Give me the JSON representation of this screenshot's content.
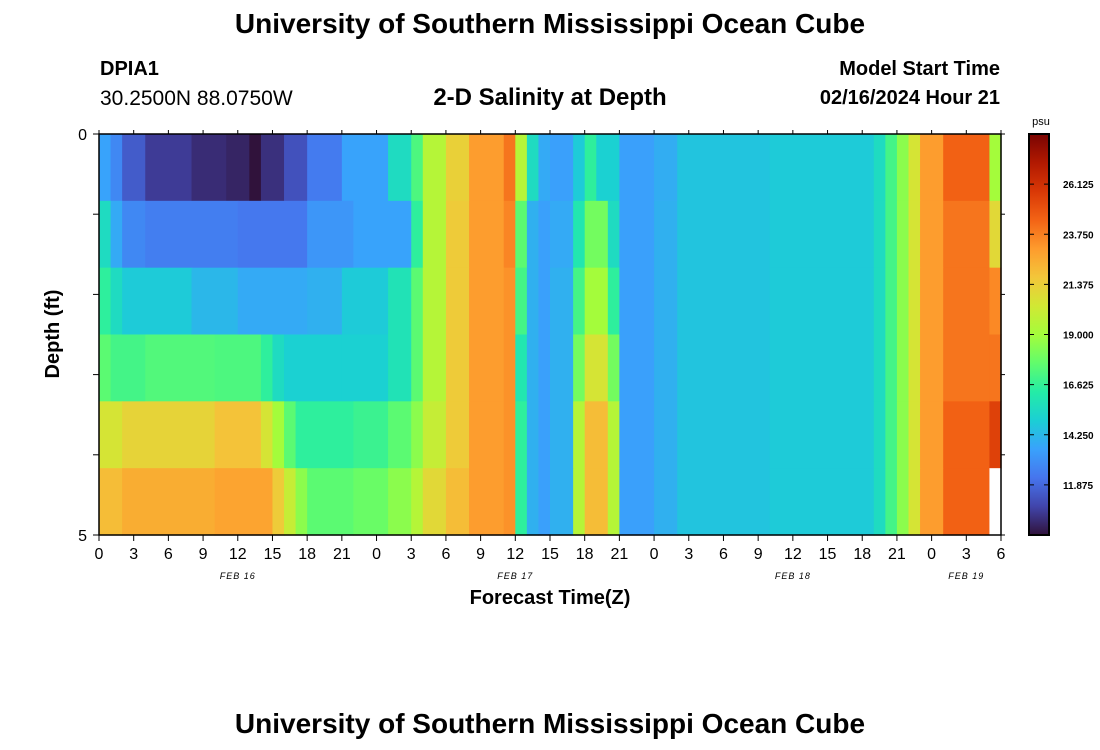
{
  "page": {
    "title_top": "University of Southern Mississippi Ocean Cube",
    "title_bottom": "University of Southern Mississippi Ocean Cube",
    "station": "DPIA1",
    "coords": "30.2500N  88.0750W",
    "chart_title": "2-D Salinity at Depth",
    "model_start_label": "Model Start Time",
    "model_start_value": "02/16/2024 Hour 21"
  },
  "chart_data": {
    "type": "heatmap",
    "title": "2-D Salinity at Depth",
    "xlabel": "Forecast Time(Z)",
    "ylabel": "Depth (ft)",
    "colorbar_unit": "psu",
    "colorbar_ticks": [
      "26.125",
      "23.750",
      "21.375",
      "19.000",
      "16.625",
      "14.250",
      "11.875"
    ],
    "colorbar_range": [
      9.5,
      28.5
    ],
    "colorbar_colors": [
      "#30123b",
      "#4145ab",
      "#4675ed",
      "#39a2fc",
      "#1bcfd4",
      "#24eca6",
      "#61fc6c",
      "#a4fc3b",
      "#d1e834",
      "#f3c63a",
      "#fe9b2d",
      "#f36315",
      "#d93806",
      "#b11901",
      "#7a0402"
    ],
    "y_ticks": [
      "0",
      "5"
    ],
    "y_range": [
      0,
      5
    ],
    "x_tick_labels": [
      "0",
      "3",
      "6",
      "9",
      "12",
      "15",
      "18",
      "21",
      "0",
      "3",
      "6",
      "9",
      "12",
      "15",
      "18",
      "21",
      "0",
      "3",
      "6",
      "9",
      "12",
      "15",
      "18",
      "21",
      "0",
      "3",
      "6"
    ],
    "date_labels": [
      "FEB 16",
      "FEB 17",
      "FEB 18",
      "FEB 19"
    ],
    "x_start_hour": 0,
    "x_end_hour": 78,
    "depth_rows": [
      {
        "segments": [
          [
            0,
            1,
            13.6
          ],
          [
            1,
            2,
            12.8
          ],
          [
            2,
            4,
            11.5
          ],
          [
            4,
            8,
            10.6
          ],
          [
            8,
            11,
            10.2
          ],
          [
            11,
            13,
            10.0
          ],
          [
            13,
            14,
            9.5
          ],
          [
            14,
            16,
            10.3
          ],
          [
            16,
            18,
            11.2
          ],
          [
            18,
            21,
            12.4
          ],
          [
            21,
            25,
            13.6
          ],
          [
            25,
            27,
            15.5
          ],
          [
            27,
            28,
            17.2
          ],
          [
            28,
            30,
            19.5
          ],
          [
            30,
            32,
            21.3
          ],
          [
            32,
            35,
            23.0
          ],
          [
            35,
            36,
            24.0
          ],
          [
            36,
            37,
            19.5
          ],
          [
            37,
            38,
            15.5
          ],
          [
            38,
            39,
            13.8
          ],
          [
            39,
            41,
            13.5
          ],
          [
            41,
            42,
            14.8
          ],
          [
            42,
            43,
            16.5
          ],
          [
            43,
            45,
            15.0
          ],
          [
            45,
            48,
            13.5
          ],
          [
            48,
            50,
            13.9
          ],
          [
            50,
            58,
            14.6
          ],
          [
            58,
            67,
            14.8
          ],
          [
            67,
            68,
            15.5
          ],
          [
            68,
            69,
            17.0
          ],
          [
            69,
            70,
            18.5
          ],
          [
            70,
            71,
            20.5
          ],
          [
            71,
            73,
            23.0
          ],
          [
            73,
            77,
            24.5
          ],
          [
            77,
            78,
            19.0
          ]
        ]
      },
      {
        "segments": [
          [
            0,
            1,
            15.5
          ],
          [
            1,
            2,
            13.8
          ],
          [
            2,
            4,
            12.8
          ],
          [
            4,
            12,
            12.5
          ],
          [
            12,
            18,
            12.3
          ],
          [
            18,
            22,
            13.2
          ],
          [
            22,
            27,
            13.6
          ],
          [
            27,
            28,
            16.5
          ],
          [
            28,
            30,
            19.5
          ],
          [
            30,
            32,
            21.5
          ],
          [
            32,
            35,
            23.0
          ],
          [
            35,
            36,
            23.6
          ],
          [
            36,
            37,
            17.5
          ],
          [
            37,
            38,
            14.0
          ],
          [
            38,
            39,
            13.5
          ],
          [
            39,
            41,
            13.8
          ],
          [
            41,
            42,
            16.0
          ],
          [
            42,
            44,
            18.0
          ],
          [
            44,
            45,
            15.5
          ],
          [
            45,
            48,
            13.5
          ],
          [
            48,
            50,
            14.0
          ],
          [
            50,
            58,
            14.6
          ],
          [
            58,
            67,
            14.8
          ],
          [
            67,
            68,
            15.5
          ],
          [
            68,
            69,
            17.0
          ],
          [
            69,
            70,
            18.5
          ],
          [
            70,
            71,
            20.5
          ],
          [
            71,
            73,
            23.0
          ],
          [
            73,
            77,
            24.0
          ],
          [
            77,
            78,
            21.0
          ]
        ]
      },
      {
        "segments": [
          [
            0,
            1,
            16.5
          ],
          [
            1,
            2,
            15.5
          ],
          [
            2,
            8,
            14.8
          ],
          [
            8,
            12,
            14.2
          ],
          [
            12,
            18,
            13.8
          ],
          [
            18,
            21,
            14.0
          ],
          [
            21,
            25,
            14.8
          ],
          [
            25,
            27,
            15.8
          ],
          [
            27,
            28,
            17.5
          ],
          [
            28,
            30,
            19.5
          ],
          [
            30,
            32,
            21.5
          ],
          [
            32,
            35,
            23.0
          ],
          [
            35,
            36,
            23.3
          ],
          [
            36,
            37,
            17.0
          ],
          [
            37,
            38,
            14.0
          ],
          [
            38,
            39,
            13.5
          ],
          [
            39,
            41,
            14.0
          ],
          [
            41,
            42,
            17.0
          ],
          [
            42,
            44,
            19.0
          ],
          [
            44,
            45,
            16.5
          ],
          [
            45,
            48,
            13.5
          ],
          [
            48,
            50,
            14.0
          ],
          [
            50,
            58,
            14.6
          ],
          [
            58,
            67,
            14.8
          ],
          [
            67,
            68,
            15.5
          ],
          [
            68,
            69,
            17.0
          ],
          [
            69,
            70,
            18.5
          ],
          [
            70,
            71,
            20.5
          ],
          [
            71,
            73,
            23.0
          ],
          [
            73,
            77,
            24.0
          ],
          [
            77,
            78,
            23.5
          ]
        ]
      },
      {
        "segments": [
          [
            0,
            1,
            17.5
          ],
          [
            1,
            4,
            17.0
          ],
          [
            4,
            10,
            17.3
          ],
          [
            10,
            14,
            17.2
          ],
          [
            14,
            15,
            16.5
          ],
          [
            15,
            16,
            15.5
          ],
          [
            16,
            21,
            15.0
          ],
          [
            21,
            25,
            15.0
          ],
          [
            25,
            27,
            15.8
          ],
          [
            27,
            28,
            17.5
          ],
          [
            28,
            30,
            19.5
          ],
          [
            30,
            32,
            21.5
          ],
          [
            32,
            35,
            23.0
          ],
          [
            35,
            36,
            23.3
          ],
          [
            36,
            37,
            16.0
          ],
          [
            37,
            38,
            14.0
          ],
          [
            38,
            39,
            13.5
          ],
          [
            39,
            41,
            14.0
          ],
          [
            41,
            42,
            18.0
          ],
          [
            42,
            44,
            20.5
          ],
          [
            44,
            45,
            18.0
          ],
          [
            45,
            48,
            13.5
          ],
          [
            48,
            50,
            14.0
          ],
          [
            50,
            58,
            14.6
          ],
          [
            58,
            67,
            14.8
          ],
          [
            67,
            68,
            15.5
          ],
          [
            68,
            69,
            17.0
          ],
          [
            69,
            70,
            18.5
          ],
          [
            70,
            71,
            20.5
          ],
          [
            71,
            73,
            23.0
          ],
          [
            73,
            77,
            24.0
          ],
          [
            77,
            78,
            24.0
          ]
        ]
      },
      {
        "segments": [
          [
            0,
            2,
            20.5
          ],
          [
            2,
            10,
            21.2
          ],
          [
            10,
            14,
            21.8
          ],
          [
            14,
            15,
            20.5
          ],
          [
            15,
            16,
            19.0
          ],
          [
            16,
            17,
            17.5
          ],
          [
            17,
            22,
            16.5
          ],
          [
            22,
            25,
            16.8
          ],
          [
            25,
            27,
            17.5
          ],
          [
            27,
            28,
            18.5
          ],
          [
            28,
            30,
            20.0
          ],
          [
            30,
            32,
            21.5
          ],
          [
            32,
            35,
            23.0
          ],
          [
            35,
            36,
            23.3
          ],
          [
            36,
            37,
            16.5
          ],
          [
            37,
            38,
            14.0
          ],
          [
            38,
            39,
            13.5
          ],
          [
            39,
            41,
            14.0
          ],
          [
            41,
            42,
            19.5
          ],
          [
            42,
            44,
            22.0
          ],
          [
            44,
            45,
            19.5
          ],
          [
            45,
            48,
            13.5
          ],
          [
            48,
            50,
            14.0
          ],
          [
            50,
            58,
            14.6
          ],
          [
            58,
            67,
            14.8
          ],
          [
            67,
            68,
            15.5
          ],
          [
            68,
            69,
            17.0
          ],
          [
            69,
            70,
            18.5
          ],
          [
            70,
            71,
            20.5
          ],
          [
            71,
            73,
            23.0
          ],
          [
            73,
            77,
            24.5
          ],
          [
            77,
            78,
            25.5
          ]
        ]
      },
      {
        "segments": [
          [
            0,
            2,
            22.0
          ],
          [
            2,
            10,
            22.5
          ],
          [
            10,
            15,
            22.8
          ],
          [
            15,
            16,
            21.5
          ],
          [
            16,
            17,
            20.0
          ],
          [
            17,
            18,
            18.5
          ],
          [
            18,
            22,
            17.5
          ],
          [
            22,
            25,
            17.8
          ],
          [
            25,
            27,
            18.5
          ],
          [
            27,
            28,
            19.5
          ],
          [
            28,
            30,
            21.0
          ],
          [
            30,
            32,
            22.0
          ],
          [
            32,
            35,
            23.0
          ],
          [
            35,
            36,
            23.3
          ],
          [
            36,
            37,
            16.5
          ],
          [
            37,
            38,
            14.0
          ],
          [
            38,
            39,
            13.5
          ],
          [
            39,
            41,
            14.0
          ],
          [
            41,
            42,
            19.5
          ],
          [
            42,
            44,
            22.0
          ],
          [
            44,
            45,
            19.5
          ],
          [
            45,
            48,
            13.5
          ],
          [
            48,
            50,
            14.0
          ],
          [
            50,
            58,
            14.6
          ],
          [
            58,
            67,
            14.8
          ],
          [
            67,
            68,
            15.5
          ],
          [
            68,
            69,
            17.0
          ],
          [
            69,
            70,
            18.5
          ],
          [
            70,
            71,
            20.5
          ],
          [
            71,
            73,
            23.0
          ],
          [
            73,
            77,
            24.5
          ],
          [
            77,
            78,
            null
          ]
        ]
      }
    ]
  }
}
